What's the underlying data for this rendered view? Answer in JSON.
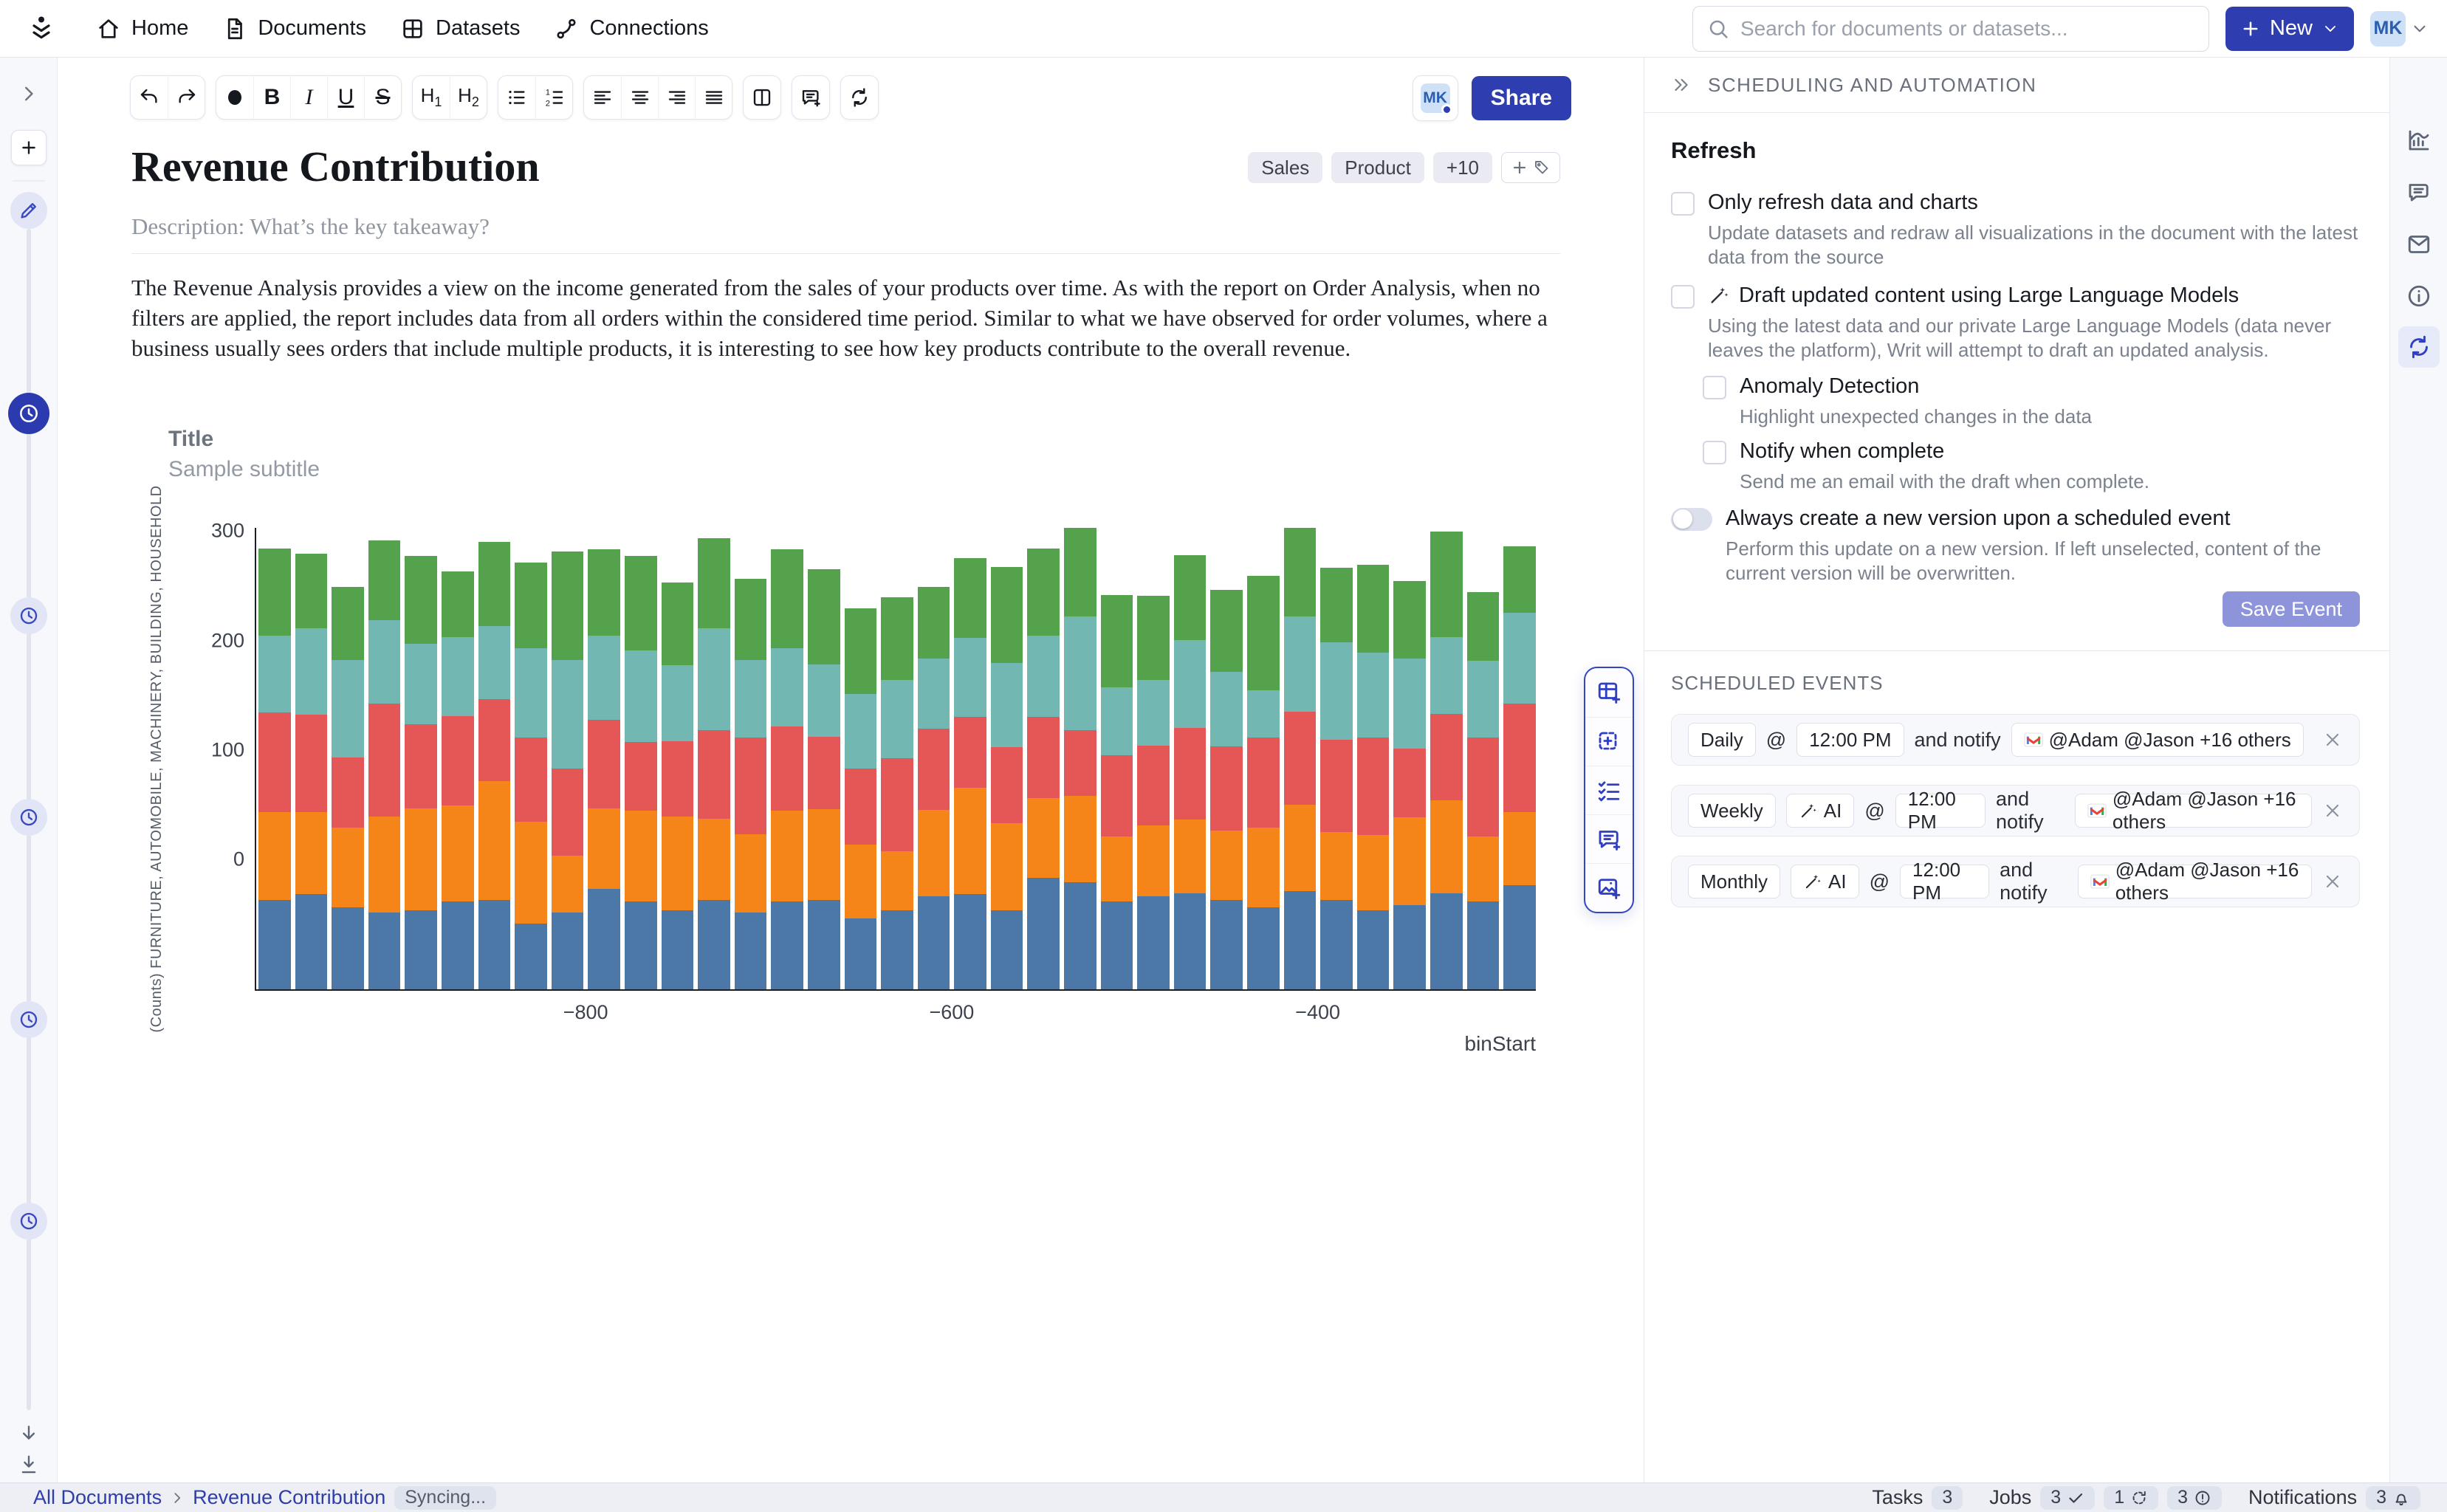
{
  "header": {
    "nav": [
      {
        "icon": "home",
        "label": "Home"
      },
      {
        "icon": "doc",
        "label": "Documents"
      },
      {
        "icon": "grid",
        "label": "Datasets"
      },
      {
        "icon": "link",
        "label": "Connections"
      }
    ],
    "search_placeholder": "Search for documents or datasets...",
    "new_label": "New",
    "avatar": "MK"
  },
  "left_rail": {
    "timeline": [
      {
        "icon": "pencil",
        "state": "light",
        "y": 207
      },
      {
        "icon": "clock",
        "state": "active",
        "y": 482
      },
      {
        "icon": "clock",
        "state": "light",
        "y": 756
      },
      {
        "icon": "clock",
        "state": "light",
        "y": 1029
      },
      {
        "icon": "clock",
        "state": "light",
        "y": 1303
      },
      {
        "icon": "clock",
        "state": "light",
        "y": 1576
      }
    ],
    "bottom_icons": [
      "arrowdown",
      "arrowdownline"
    ]
  },
  "doc": {
    "toolbar_groups": [
      [
        "undo",
        "redo"
      ],
      [
        "dot",
        "bold",
        "italic",
        "underline",
        "strike"
      ],
      [
        "h1",
        "h2"
      ],
      [
        "ul",
        "ol"
      ],
      [
        "alignL",
        "alignC",
        "alignR",
        "alignJ"
      ],
      [
        "columns"
      ],
      [
        "commentplus"
      ],
      [
        "sync"
      ]
    ],
    "presence_avatar": "MK",
    "share_label": "Share",
    "title": "Revenue Contribution",
    "tags": [
      "Sales",
      "Product",
      "+10"
    ],
    "description_placeholder": "Description: What’s the key takeaway?",
    "paragraph": "The Revenue Analysis provides a view on the income generated from the sales of your products over time. As with the report on Order Analysis, when no filters are applied, the report includes data from all orders within the considered time period. Similar to what we have observed for order volumes, where a business usually sees orders that include multiple products, it is interesting to see how key products contribute to the overall revenue.",
    "floating_toolbar": [
      "tableplus",
      "selectplus",
      "checklist",
      "commentplus",
      "imageplus"
    ]
  },
  "chart_data": {
    "type": "bar",
    "stacked": true,
    "title": "Title",
    "subtitle": "Sample subtitle",
    "xlabel": "binStart",
    "ylabel": "(Counts) FURNITURE, AUTOMOBILE, MACHINERY, BUILDING, HOUSEHOLD",
    "bins": 35,
    "x_bin_start": -980,
    "bin_width": 20,
    "x_ticks": [
      -800,
      -600,
      -400
    ],
    "y_ticks": [
      300,
      200,
      100,
      0
    ],
    "ylim": [
      -120,
      303
    ],
    "baseline": -120,
    "baseline_clipped": true,
    "grid": false,
    "legend": "none",
    "series": [
      {
        "name": "FURNITURE",
        "color": "#4C78A8",
        "values": [
          82,
          87,
          75,
          70,
          72,
          80,
          82,
          60,
          70,
          92,
          80,
          72,
          82,
          70,
          80,
          82,
          65,
          72,
          85,
          87,
          72,
          102,
          98,
          80,
          85,
          88,
          82,
          75,
          90,
          82,
          72,
          77,
          88,
          80,
          95
        ]
      },
      {
        "name": "AUTOMOBILE",
        "color": "#F58518",
        "values": [
          80,
          75,
          73,
          88,
          93,
          88,
          108,
          93,
          52,
          73,
          83,
          86,
          74,
          72,
          83,
          83,
          67,
          54,
          79,
          97,
          80,
          73,
          79,
          60,
          65,
          67,
          63,
          73,
          79,
          62,
          69,
          80,
          85,
          60,
          67
        ]
      },
      {
        "name": "MACHINERY",
        "color": "#E45756",
        "values": [
          91,
          89,
          64,
          103,
          77,
          82,
          75,
          77,
          80,
          81,
          63,
          69,
          81,
          88,
          77,
          66,
          70,
          85,
          74,
          65,
          69,
          74,
          60,
          74,
          73,
          84,
          77,
          82,
          85,
          84,
          89,
          63,
          79,
          90,
          99
        ]
      },
      {
        "name": "BUILDING",
        "color": "#72B7B2",
        "values": [
          70,
          79,
          89,
          76,
          74,
          72,
          67,
          82,
          99,
          77,
          84,
          69,
          93,
          71,
          72,
          66,
          68,
          72,
          64,
          72,
          77,
          74,
          104,
          62,
          60,
          80,
          68,
          43,
          87,
          89,
          78,
          82,
          70,
          70,
          83
        ]
      },
      {
        "name": "HOUSEHOLD",
        "color": "#54A24B",
        "values": [
          80,
          68,
          67,
          73,
          80,
          60,
          77,
          78,
          99,
          79,
          86,
          76,
          82,
          74,
          90,
          87,
          78,
          75,
          66,
          73,
          88,
          80,
          89,
          84,
          77,
          78,
          75,
          105,
          87,
          68,
          80,
          71,
          96,
          63,
          61
        ]
      }
    ]
  },
  "right_panel": {
    "header": "SCHEDULING AND AUTOMATION",
    "refresh": {
      "heading": "Refresh",
      "rows": [
        {
          "label": "Only refresh data and charts",
          "sub": "Update datasets and redraw all visualizations in the document with the latest data from the source"
        },
        {
          "label": "Draft updated content using Large Language Models",
          "sub": "Using the latest data and our private Large Language Models (data never leaves the platform), Writ will attempt to draft an updated analysis."
        },
        {
          "label": "Anomaly Detection",
          "sub": "Highlight unexpected changes in the data"
        },
        {
          "label": "Notify when complete",
          "sub": "Send me an email with the draft when complete."
        }
      ],
      "toggle": {
        "label": "Always create a new version upon a scheduled event",
        "sub": "Perform this update on a new version.  If left unselected, content of the current version will be overwritten.",
        "state": "off"
      }
    },
    "save_label": "Save Event",
    "scheduled_heading": "SCHEDULED EVENTS",
    "events": [
      {
        "frequency": "Daily",
        "ai": false,
        "at": "@",
        "time": "12:00 PM",
        "notify": "and notify",
        "recipients": "@Adam @Jason +16 others"
      },
      {
        "frequency": "Weekly",
        "ai": true,
        "ai_label": "AI",
        "at": "@",
        "time": "12:00 PM",
        "notify": "and notify",
        "recipients": "@Adam @Jason +16 others"
      },
      {
        "frequency": "Monthly",
        "ai": true,
        "ai_label": "AI",
        "at": "@",
        "time": "12:00 PM",
        "notify": "and notify",
        "recipients": "@Adam @Jason +16 others"
      }
    ]
  },
  "right_rail": [
    {
      "icon": "chartpanel",
      "active": false
    },
    {
      "icon": "comment",
      "active": false
    },
    {
      "icon": "mail",
      "active": false
    },
    {
      "icon": "info",
      "active": false
    },
    {
      "icon": "sync",
      "active": true
    }
  ],
  "status_bar": {
    "breadcrumb": [
      "All Documents",
      "Revenue Contribution"
    ],
    "syncing": "Syncing...",
    "tasks_label": "Tasks",
    "tasks_count": "3",
    "jobs_label": "Jobs",
    "jobs": [
      {
        "count": "3",
        "icon": "check"
      },
      {
        "count": "1",
        "icon": "spinner"
      },
      {
        "count": "3",
        "icon": "alert"
      }
    ],
    "notifications_label": "Notifications",
    "notifications_count": "3",
    "notifications_icon": "bell"
  }
}
